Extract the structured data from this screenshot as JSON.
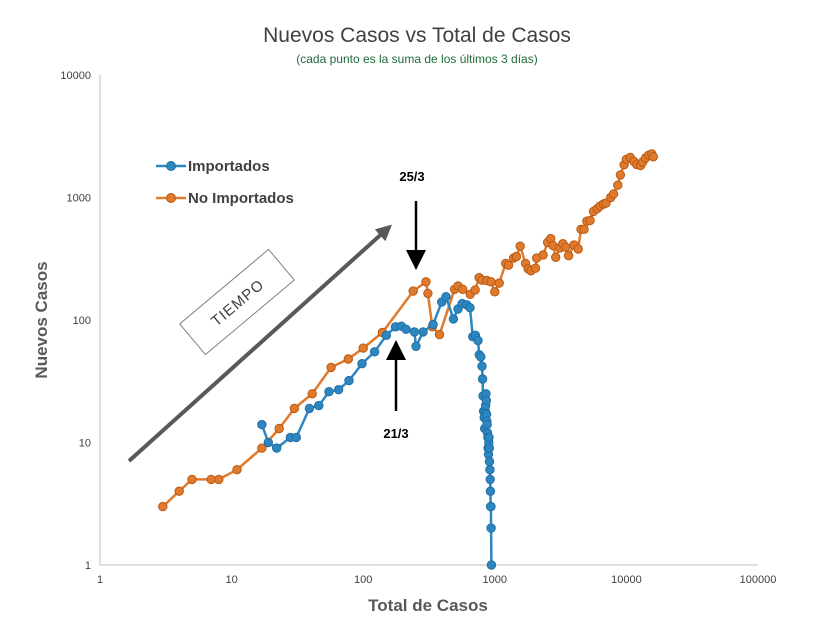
{
  "chart_data": {
    "type": "line",
    "title": "Nuevos Casos vs Total de Casos",
    "subtitle": "(cada punto es la suma de los últimos 3 días)",
    "xlabel": "Total de Casos",
    "ylabel": "Nuevos Casos",
    "xscale": "log",
    "yscale": "log",
    "xlim": [
      1,
      100000
    ],
    "ylim": [
      1,
      10000
    ],
    "x_ticks": [
      "1",
      "10",
      "100",
      "1000",
      "10000",
      "100000"
    ],
    "y_ticks": [
      "1",
      "10",
      "100",
      "1000",
      "10000"
    ],
    "grid": false,
    "legend_position": "top-left",
    "series": [
      {
        "name": "Importados",
        "color": "#2e86c1",
        "points": [
          [
            17,
            14
          ],
          [
            19,
            10
          ],
          [
            22,
            9
          ],
          [
            28,
            11
          ],
          [
            31,
            11
          ],
          [
            39,
            19
          ],
          [
            46,
            20
          ],
          [
            55,
            26
          ],
          [
            65,
            27
          ],
          [
            78,
            32
          ],
          [
            98,
            44
          ],
          [
            122,
            55
          ],
          [
            150,
            75
          ],
          [
            176,
            88
          ],
          [
            195,
            89
          ],
          [
            212,
            84
          ],
          [
            245,
            80
          ],
          [
            252,
            61
          ],
          [
            285,
            80
          ],
          [
            340,
            92
          ],
          [
            395,
            140
          ],
          [
            426,
            155
          ],
          [
            485,
            102
          ],
          [
            525,
            123
          ],
          [
            565,
            136
          ],
          [
            612,
            133
          ],
          [
            648,
            126
          ],
          [
            680,
            73
          ],
          [
            712,
            75
          ],
          [
            745,
            68
          ],
          [
            762,
            52
          ],
          [
            783,
            50
          ],
          [
            800,
            42
          ],
          [
            808,
            33
          ],
          [
            814,
            24
          ],
          [
            822,
            18
          ],
          [
            830,
            16
          ],
          [
            838,
            13
          ],
          [
            846,
            18
          ],
          [
            852,
            20
          ],
          [
            858,
            25
          ],
          [
            862,
            22
          ],
          [
            866,
            17
          ],
          [
            870,
            15
          ],
          [
            874,
            14
          ],
          [
            880,
            12
          ],
          [
            886,
            11
          ],
          [
            890,
            9
          ],
          [
            896,
            8
          ],
          [
            900,
            10
          ],
          [
            904,
            11
          ],
          [
            908,
            9
          ],
          [
            912,
            7
          ],
          [
            918,
            6
          ],
          [
            922,
            5
          ],
          [
            926,
            4
          ],
          [
            930,
            3
          ],
          [
            934,
            3
          ],
          [
            938,
            2
          ],
          [
            942,
            1
          ]
        ]
      },
      {
        "name": "No Importados",
        "color": "#e07a2c",
        "points": [
          [
            3,
            3
          ],
          [
            4,
            4
          ],
          [
            5,
            5
          ],
          [
            7,
            5
          ],
          [
            8,
            5
          ],
          [
            11,
            6
          ],
          [
            17,
            9
          ],
          [
            23,
            13
          ],
          [
            30,
            19
          ],
          [
            41,
            25
          ],
          [
            57,
            41
          ],
          [
            77,
            48
          ],
          [
            100,
            59
          ],
          [
            140,
            79
          ],
          [
            240,
            172
          ],
          [
            300,
            205
          ],
          [
            310,
            165
          ],
          [
            335,
            88
          ],
          [
            380,
            76
          ],
          [
            495,
            178
          ],
          [
            525,
            190
          ],
          [
            570,
            178
          ],
          [
            650,
            162
          ],
          [
            710,
            176
          ],
          [
            760,
            222
          ],
          [
            800,
            212
          ],
          [
            870,
            210
          ],
          [
            935,
            205
          ],
          [
            1000,
            170
          ],
          [
            1080,
            200
          ],
          [
            1210,
            290
          ],
          [
            1270,
            280
          ],
          [
            1390,
            320
          ],
          [
            1460,
            330
          ],
          [
            1560,
            400
          ],
          [
            1710,
            290
          ],
          [
            1790,
            262
          ],
          [
            1880,
            252
          ],
          [
            2040,
            265
          ],
          [
            2080,
            320
          ],
          [
            2330,
            340
          ],
          [
            2520,
            430
          ],
          [
            2660,
            462
          ],
          [
            2770,
            405
          ],
          [
            2900,
            325
          ],
          [
            3120,
            388
          ],
          [
            3290,
            420
          ],
          [
            3460,
            392
          ],
          [
            3640,
            335
          ],
          [
            4000,
            410
          ],
          [
            4300,
            380
          ],
          [
            4520,
            550
          ],
          [
            4770,
            550
          ],
          [
            5000,
            640
          ],
          [
            5300,
            650
          ],
          [
            5620,
            770
          ],
          [
            6000,
            810
          ],
          [
            6300,
            850
          ],
          [
            6700,
            885
          ],
          [
            7000,
            900
          ],
          [
            7600,
            1000
          ],
          [
            8000,
            1070
          ],
          [
            8600,
            1260
          ],
          [
            9000,
            1530
          ],
          [
            9600,
            1850
          ],
          [
            10000,
            2050
          ],
          [
            10700,
            2120
          ],
          [
            11400,
            1970
          ],
          [
            12000,
            1860
          ],
          [
            12800,
            1820
          ],
          [
            13300,
            1950
          ],
          [
            14000,
            2100
          ],
          [
            14800,
            2220
          ],
          [
            15600,
            2270
          ],
          [
            16000,
            2150
          ]
        ]
      }
    ],
    "annotations": [
      {
        "text": "25/3",
        "arrow": "down"
      },
      {
        "text": "21/3",
        "arrow": "up"
      },
      {
        "text": "TIEMPO",
        "arrow": "diagonal"
      }
    ]
  }
}
